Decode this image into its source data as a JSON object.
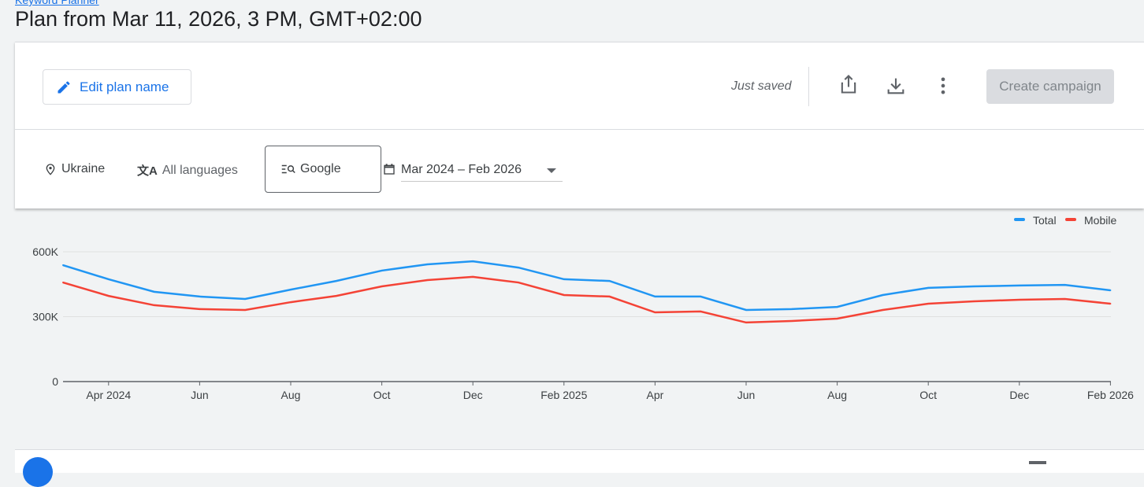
{
  "breadcrumb": "Keyword Planner",
  "page_title": "Plan from Mar 11, 2026, 3 PM, GMT+02:00",
  "toolbar": {
    "edit_label": "Edit plan name",
    "status": "Just saved",
    "create_label": "Create campaign",
    "icons": [
      "share-icon",
      "download-icon",
      "more-vert-icon"
    ]
  },
  "filters": {
    "location": "Ukraine",
    "language": "All languages",
    "network": "Google",
    "date_range": "Mar 2024 – Feb 2026"
  },
  "chart_data": {
    "type": "line",
    "x": [
      "Mar 2024",
      "Apr 2024",
      "May 2024",
      "Jun 2024",
      "Jul 2024",
      "Aug 2024",
      "Sep 2024",
      "Oct 2024",
      "Nov 2024",
      "Dec 2024",
      "Jan 2025",
      "Feb 2025",
      "Mar 2025",
      "Apr 2025",
      "May 2025",
      "Jun 2025",
      "Jul 2025",
      "Aug 2025",
      "Sep 2025",
      "Oct 2025",
      "Nov 2025",
      "Dec 2025",
      "Jan 2026",
      "Feb 2026"
    ],
    "tick_labels": [
      "Apr 2024",
      "Jun",
      "Aug",
      "Oct",
      "Dec",
      "Feb 2025",
      "Apr",
      "Jun",
      "Aug",
      "Oct",
      "Dec",
      "Feb 2026"
    ],
    "y_ticks": [
      "0",
      "300K",
      "600K"
    ],
    "ylim": [
      0,
      600000
    ],
    "grid": true,
    "legend": "top-right",
    "series": [
      {
        "name": "Total",
        "color": "#2196f3",
        "values": [
          538000,
          473000,
          415000,
          393000,
          382000,
          425000,
          465000,
          513000,
          542000,
          556000,
          527000,
          473000,
          465000,
          393000,
          393000,
          331000,
          335000,
          345000,
          400000,
          433000,
          440000,
          444000,
          447000,
          422000
        ]
      },
      {
        "name": "Mobile",
        "color": "#f44336",
        "values": [
          458000,
          396000,
          353000,
          335000,
          331000,
          367000,
          396000,
          440000,
          469000,
          484000,
          458000,
          400000,
          393000,
          320000,
          324000,
          273000,
          280000,
          291000,
          331000,
          360000,
          371000,
          378000,
          382000,
          360000
        ]
      }
    ]
  }
}
